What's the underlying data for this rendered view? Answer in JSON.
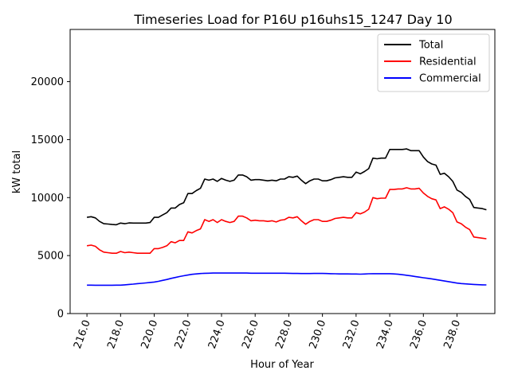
{
  "chart_data": {
    "type": "line",
    "title": "Timeseries Load for P16U p16uhs15_1247  Day 10",
    "xlabel": "Hour of Year",
    "ylabel": "kW total",
    "xlim": [
      215.0,
      240.25
    ],
    "ylim": [
      0,
      24500
    ],
    "x_ticks": [
      216,
      218,
      220,
      222,
      224,
      226,
      228,
      230,
      232,
      234,
      236,
      238
    ],
    "x_tick_labels": [
      "216.0",
      "218.0",
      "220.0",
      "222.0",
      "224.0",
      "226.0",
      "228.0",
      "230.0",
      "232.0",
      "234.0",
      "236.0",
      "238.0"
    ],
    "y_ticks": [
      0,
      5000,
      10000,
      15000,
      20000
    ],
    "y_tick_labels": [
      "0",
      "5000",
      "10000",
      "15000",
      "20000"
    ],
    "grid": false,
    "legend_position": "top-right",
    "x": [
      216.0,
      216.25,
      216.5,
      216.75,
      217.0,
      217.25,
      217.5,
      217.75,
      218.0,
      218.25,
      218.5,
      218.75,
      219.0,
      219.25,
      219.5,
      219.75,
      220.0,
      220.25,
      220.5,
      220.75,
      221.0,
      221.25,
      221.5,
      221.75,
      222.0,
      222.25,
      222.5,
      222.75,
      223.0,
      223.25,
      223.5,
      223.75,
      224.0,
      224.25,
      224.5,
      224.75,
      225.0,
      225.25,
      225.5,
      225.75,
      226.0,
      226.25,
      226.5,
      226.75,
      227.0,
      227.25,
      227.5,
      227.75,
      228.0,
      228.25,
      228.5,
      228.75,
      229.0,
      229.25,
      229.5,
      229.75,
      230.0,
      230.25,
      230.5,
      230.75,
      231.0,
      231.25,
      231.5,
      231.75,
      232.0,
      232.25,
      232.5,
      232.75,
      233.0,
      233.25,
      233.5,
      233.75,
      234.0,
      234.25,
      234.5,
      234.75,
      235.0,
      235.25,
      235.5,
      235.75,
      236.0,
      236.25,
      236.5,
      236.75,
      237.0,
      237.25,
      237.5,
      237.75,
      238.0,
      238.25,
      238.5,
      238.75,
      239.0,
      239.25,
      239.5,
      239.75
    ],
    "series": [
      {
        "name": "Total",
        "color": "#000000",
        "values": [
          8300,
          8350,
          8250,
          7950,
          7750,
          7720,
          7680,
          7660,
          7800,
          7750,
          7820,
          7800,
          7800,
          7800,
          7800,
          7850,
          8300,
          8300,
          8500,
          8700,
          9100,
          9100,
          9400,
          9550,
          10350,
          10350,
          10600,
          10800,
          11600,
          11500,
          11600,
          11400,
          11650,
          11500,
          11400,
          11500,
          11950,
          11950,
          11800,
          11500,
          11550,
          11550,
          11500,
          11450,
          11500,
          11450,
          11600,
          11600,
          11800,
          11750,
          11850,
          11500,
          11200,
          11450,
          11600,
          11600,
          11450,
          11450,
          11550,
          11700,
          11750,
          11800,
          11750,
          11750,
          12200,
          12050,
          12250,
          12500,
          13400,
          13350,
          13400,
          13400,
          14150,
          14150,
          14150,
          14150,
          14200,
          14050,
          14050,
          14050,
          13500,
          13100,
          12900,
          12800,
          12000,
          12100,
          11800,
          11400,
          10650,
          10450,
          10100,
          9850,
          9150,
          9100,
          9050,
          8950
        ]
      },
      {
        "name": "Residential",
        "color": "#ff0000",
        "values": [
          5850,
          5900,
          5800,
          5500,
          5300,
          5250,
          5200,
          5200,
          5350,
          5250,
          5300,
          5250,
          5200,
          5200,
          5200,
          5200,
          5600,
          5600,
          5700,
          5850,
          6200,
          6100,
          6300,
          6300,
          7050,
          6950,
          7150,
          7300,
          8100,
          7950,
          8100,
          7850,
          8100,
          7950,
          7850,
          7950,
          8400,
          8400,
          8250,
          8000,
          8050,
          8000,
          8000,
          7950,
          8000,
          7900,
          8050,
          8100,
          8300,
          8250,
          8350,
          8000,
          7700,
          7950,
          8100,
          8100,
          7950,
          7950,
          8050,
          8200,
          8250,
          8300,
          8250,
          8250,
          8700,
          8600,
          8750,
          9000,
          10000,
          9900,
          9950,
          9950,
          10700,
          10700,
          10750,
          10750,
          10850,
          10750,
          10750,
          10800,
          10400,
          10100,
          9900,
          9800,
          9050,
          9200,
          9000,
          8700,
          7900,
          7750,
          7450,
          7250,
          6600,
          6550,
          6500,
          6450
        ]
      },
      {
        "name": "Commercial",
        "color": "#0000ff",
        "values": [
          2450,
          2450,
          2440,
          2440,
          2440,
          2440,
          2440,
          2450,
          2450,
          2480,
          2510,
          2540,
          2580,
          2610,
          2640,
          2680,
          2720,
          2780,
          2860,
          2940,
          3030,
          3110,
          3190,
          3260,
          3320,
          3380,
          3420,
          3450,
          3470,
          3480,
          3490,
          3490,
          3490,
          3490,
          3490,
          3490,
          3490,
          3490,
          3490,
          3480,
          3480,
          3480,
          3480,
          3480,
          3480,
          3480,
          3480,
          3480,
          3470,
          3460,
          3460,
          3450,
          3450,
          3450,
          3460,
          3460,
          3460,
          3450,
          3440,
          3430,
          3420,
          3420,
          3420,
          3410,
          3410,
          3400,
          3410,
          3430,
          3440,
          3440,
          3440,
          3440,
          3440,
          3420,
          3390,
          3350,
          3300,
          3250,
          3200,
          3140,
          3090,
          3040,
          2990,
          2930,
          2870,
          2810,
          2750,
          2690,
          2630,
          2590,
          2560,
          2530,
          2510,
          2490,
          2480,
          2470
        ]
      }
    ]
  }
}
